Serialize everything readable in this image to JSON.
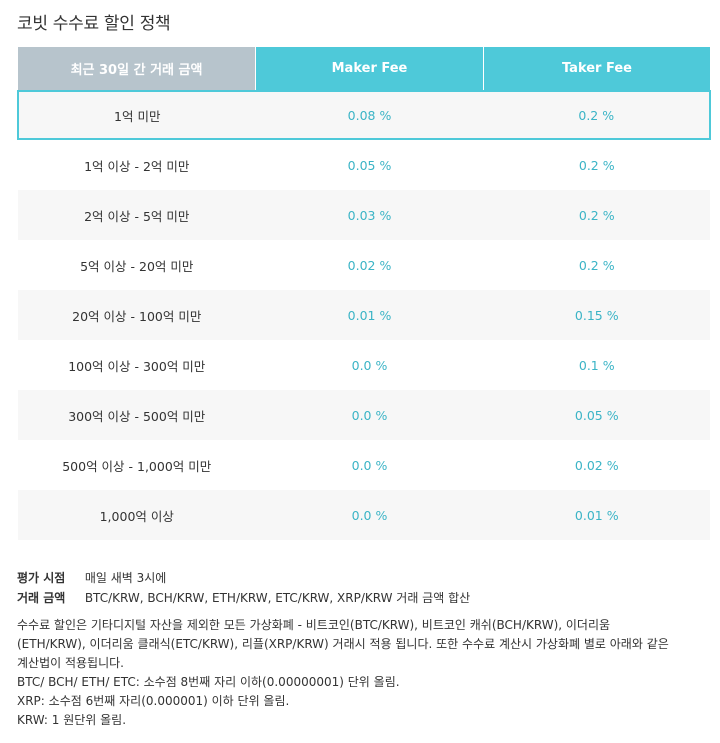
{
  "page": {
    "title": "코빗 수수료 할인 정책"
  },
  "table": {
    "headers": {
      "amount": "최근 30일 간 거래 금액",
      "maker": "Maker Fee",
      "taker": "Taker Fee"
    },
    "rows": [
      {
        "amount": "1억 미만",
        "maker": "0.08 %",
        "taker": "0.2 %"
      },
      {
        "amount": "1억 이상 - 2억 미만",
        "maker": "0.05 %",
        "taker": "0.2 %"
      },
      {
        "amount": "2억 이상 - 5억 미만",
        "maker": "0.03 %",
        "taker": "0.2 %"
      },
      {
        "amount": "5억 이상 - 20억 미만",
        "maker": "0.02 %",
        "taker": "0.2 %"
      },
      {
        "amount": "20억 이상 - 100억 미만",
        "maker": "0.01 %",
        "taker": "0.15 %"
      },
      {
        "amount": "100억 이상 - 300억 미만",
        "maker": "0.0 %",
        "taker": "0.1 %"
      },
      {
        "amount": "300억 이상 - 500억 미만",
        "maker": "0.0 %",
        "taker": "0.05 %"
      },
      {
        "amount": "500억 이상 - 1,000억 미만",
        "maker": "0.0 %",
        "taker": "0.02 %"
      },
      {
        "amount": "1,000억 이상",
        "maker": "0.0 %",
        "taker": "0.01 %"
      }
    ]
  },
  "info": {
    "eval_time_label": "평가 시점",
    "eval_time_value": "매일 새벽 3시에",
    "trade_amount_label": "거래 금액",
    "trade_amount_value": "BTC/KRW, BCH/KRW, ETH/KRW, ETC/KRW, XRP/KRW 거래 금액 합산",
    "notes": [
      "수수료 할인은 기타디지털 자산을 제외한 모든 가상화폐 - 비트코인(BTC/KRW), 비트코인 캐쉬(BCH/KRW), 이더리움",
      "(ETH/KRW), 이더리움 클래식(ETC/KRW), 리플(XRP/KRW) 거래시 적용 됩니다. 또한 수수료 계산시 가상화폐 별로 아래와 같은",
      "계산법이 적용됩니다.",
      "BTC/ BCH/ ETH/ ETC: 소수점 8번째 자리 이하(0.00000001) 단위 올림.",
      "XRP: 소수점 6번째 자리(0.000001) 이하 단위 올림.",
      "KRW: 1 원단위 올림."
    ]
  },
  "colors": {
    "accent": "#4ec9d9",
    "fee_text": "#3bb4c6",
    "header_gray": "#b7c4cc",
    "row_alt": "#f7f7f7"
  }
}
